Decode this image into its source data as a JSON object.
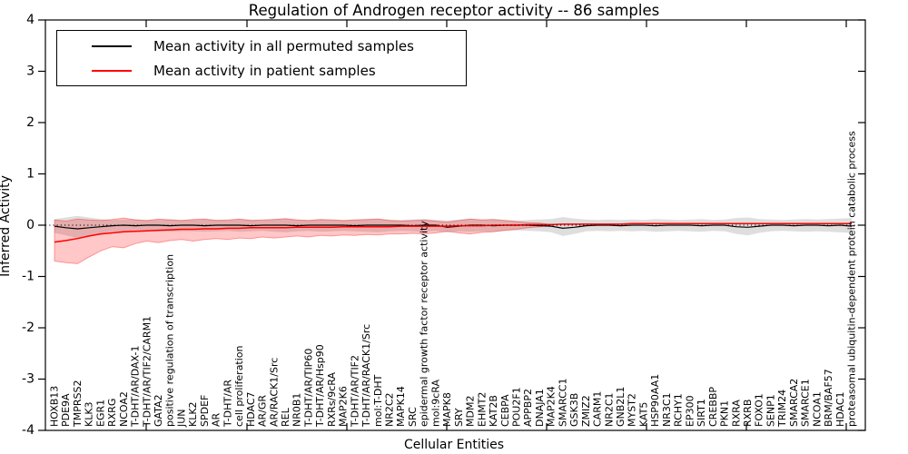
{
  "title": "Regulation of Androgen receptor activity -- 86 samples",
  "axes": {
    "xlabel": "Cellular Entities",
    "ylabel": "Inferred Activity",
    "yticks": [
      "4",
      "3",
      "2",
      "1",
      "0",
      "-1",
      "-2",
      "-3",
      "-4"
    ],
    "ylim": [
      -4,
      4
    ],
    "grid": false
  },
  "legend": {
    "position": "upper-left",
    "entries": [
      {
        "label": "Mean activity in all permuted samples",
        "color": "#000000"
      },
      {
        "label": "Mean activity in patient samples",
        "color": "#ff0000"
      }
    ]
  },
  "colors": {
    "permuted_line": "#000000",
    "patient_line": "#ff0000",
    "permuted_band": "rgba(0,0,0,0.13)",
    "patient_band": "rgba(255,0,0,0.22)",
    "patient_band_edge": "rgba(255,0,0,0.35)"
  },
  "chart_data": {
    "type": "line",
    "title": "Regulation of Androgen receptor activity -- 86 samples",
    "xlabel": "Cellular Entities",
    "ylabel": "Inferred Activity",
    "ylim": [
      -4,
      4
    ],
    "zero_reference_line": true,
    "categories": [
      "HOXB13",
      "PDE9A",
      "TMPRSS2",
      "KLK3",
      "EGR1",
      "RXRG",
      "NCOA2",
      "T-DHT/AR/DAX-1",
      "T-DHT/AR/TIF2/CARM1",
      "GATA2",
      "positive regulation of transcription",
      "JUN",
      "KLK2",
      "SPDEF",
      "AR",
      "T-DHT/AR",
      "cell proliferation",
      "HDAC7",
      "AR/GR",
      "AR/RACK1/Src",
      "REL",
      "NR0B1",
      "T-DHT/AR/TIP60",
      "T-DHT/AR/Hsp90",
      "RXRs/9cRA",
      "MAP2K6",
      "T-DHT/AR/TIF2",
      "T-DHT/AR/RACK1/Src",
      "mol:T-DHT",
      "NR2C2",
      "MAPK14",
      "SRC",
      "epidermal growth factor receptor activity",
      "mol:9cRA",
      "MAPK8",
      "SRY",
      "MDM2",
      "EHMT2",
      "KAT2B",
      "CEBPA",
      "POU2F1",
      "APPBP2",
      "DNAJA1",
      "MAP2K4",
      "SMARCC1",
      "GSK3B",
      "ZMIZ2",
      "CARM1",
      "NR2C1",
      "GNB2L1",
      "MYST2",
      "KAT5",
      "HSP90AA1",
      "NR3C1",
      "RCHY1",
      "EP300",
      "SIRT1",
      "CREBBP",
      "PKN1",
      "RXRA",
      "RXRB",
      "FOXO1",
      "SENP1",
      "TRIM24",
      "SMARCA2",
      "SMARCE1",
      "NCOA1",
      "BRM/BAF57",
      "HDAC1",
      "proteasomal ubiquitin-dependent protein catabolic process"
    ],
    "series": [
      {
        "name": "Mean activity in all permuted samples",
        "color": "#000000",
        "values": [
          -0.02,
          -0.05,
          -0.07,
          -0.05,
          -0.03,
          -0.01,
          0.0,
          -0.01,
          0.0,
          0.0,
          -0.01,
          0.0,
          0.0,
          -0.01,
          0.0,
          0.0,
          0.0,
          -0.01,
          0.0,
          0.0,
          0.0,
          -0.01,
          0.0,
          0.0,
          0.0,
          0.0,
          -0.01,
          0.0,
          0.0,
          0.0,
          0.0,
          -0.01,
          0.0,
          0.0,
          -0.04,
          -0.02,
          0.0,
          0.0,
          -0.01,
          0.0,
          0.0,
          0.0,
          -0.01,
          -0.02,
          -0.06,
          -0.04,
          -0.01,
          0.0,
          0.0,
          -0.01,
          0.0,
          0.0,
          -0.01,
          0.0,
          0.0,
          0.0,
          -0.01,
          0.0,
          0.0,
          -0.03,
          -0.04,
          -0.02,
          0.0,
          0.0,
          -0.01,
          0.0,
          0.0,
          -0.01,
          0.0,
          -0.02
        ]
      },
      {
        "name": "Mean activity in patient samples",
        "color": "#ff0000",
        "values": [
          -0.33,
          -0.3,
          -0.26,
          -0.21,
          -0.17,
          -0.15,
          -0.13,
          -0.12,
          -0.11,
          -0.1,
          -0.09,
          -0.08,
          -0.08,
          -0.07,
          -0.07,
          -0.06,
          -0.06,
          -0.05,
          -0.05,
          -0.05,
          -0.05,
          -0.04,
          -0.04,
          -0.04,
          -0.04,
          -0.03,
          -0.03,
          -0.03,
          -0.03,
          -0.03,
          -0.02,
          -0.02,
          -0.02,
          -0.02,
          -0.02,
          -0.01,
          -0.01,
          -0.01,
          0.0,
          0.0,
          0.0,
          0.01,
          0.01,
          0.01,
          0.02,
          0.02,
          0.02,
          0.02,
          0.02,
          0.02,
          0.03,
          0.03,
          0.03,
          0.03,
          0.03,
          0.03,
          0.03,
          0.03,
          0.03,
          0.03,
          0.03,
          0.03,
          0.03,
          0.03,
          0.03,
          0.03,
          0.03,
          0.03,
          0.03,
          0.03
        ]
      }
    ],
    "bands": [
      {
        "name": "permuted-range",
        "fill": "rgba(0,0,0,0.13)",
        "edge": "none",
        "upper": [
          0.12,
          0.15,
          0.18,
          0.15,
          0.12,
          0.1,
          0.11,
          0.12,
          0.1,
          0.11,
          0.12,
          0.1,
          0.11,
          0.12,
          0.11,
          0.1,
          0.12,
          0.11,
          0.1,
          0.12,
          0.13,
          0.11,
          0.1,
          0.12,
          0.11,
          0.1,
          0.11,
          0.12,
          0.13,
          0.11,
          0.1,
          0.11,
          0.12,
          0.1,
          0.09,
          0.11,
          0.13,
          0.11,
          0.12,
          0.1,
          0.09,
          0.1,
          0.11,
          0.12,
          0.16,
          0.13,
          0.11,
          0.1,
          0.11,
          0.1,
          0.11,
          0.1,
          0.12,
          0.11,
          0.1,
          0.11,
          0.12,
          0.1,
          0.11,
          0.14,
          0.15,
          0.12,
          0.11,
          0.1,
          0.11,
          0.12,
          0.11,
          0.12,
          0.13,
          0.14
        ],
        "lower": [
          -0.15,
          -0.2,
          -0.25,
          -0.2,
          -0.16,
          -0.13,
          -0.12,
          -0.13,
          -0.12,
          -0.12,
          -0.13,
          -0.12,
          -0.12,
          -0.13,
          -0.12,
          -0.11,
          -0.13,
          -0.12,
          -0.11,
          -0.13,
          -0.14,
          -0.12,
          -0.11,
          -0.13,
          -0.12,
          -0.11,
          -0.12,
          -0.13,
          -0.14,
          -0.12,
          -0.11,
          -0.12,
          -0.13,
          -0.11,
          -0.14,
          -0.12,
          -0.13,
          -0.12,
          -0.13,
          -0.11,
          -0.1,
          -0.11,
          -0.12,
          -0.14,
          -0.21,
          -0.17,
          -0.12,
          -0.11,
          -0.12,
          -0.11,
          -0.12,
          -0.11,
          -0.13,
          -0.12,
          -0.11,
          -0.12,
          -0.13,
          -0.11,
          -0.12,
          -0.17,
          -0.2,
          -0.15,
          -0.12,
          -0.11,
          -0.12,
          -0.13,
          -0.12,
          -0.13,
          -0.14,
          -0.15
        ]
      },
      {
        "name": "patient-range",
        "fill": "rgba(255,0,0,0.22)",
        "edge": "rgba(255,0,0,0.35)",
        "upper": [
          0.1,
          0.08,
          0.12,
          0.1,
          0.09,
          0.11,
          0.14,
          0.1,
          0.09,
          0.12,
          0.1,
          0.09,
          0.11,
          0.12,
          0.09,
          0.1,
          0.12,
          0.09,
          0.1,
          0.11,
          0.13,
          0.1,
          0.09,
          0.11,
          0.1,
          0.09,
          0.1,
          0.11,
          0.12,
          0.09,
          0.08,
          0.09,
          0.1,
          0.08,
          0.06,
          0.09,
          0.12,
          0.1,
          0.11,
          0.09,
          0.07,
          0.05,
          0.04,
          0.01,
          0.02,
          0.02,
          0.02,
          0.02,
          0.02,
          0.02,
          0.03,
          0.03,
          0.03,
          0.03,
          0.03,
          0.03,
          0.03,
          0.03,
          0.03,
          0.03,
          0.03,
          0.03,
          0.03,
          0.03,
          0.03,
          0.03,
          0.03,
          0.03,
          0.03,
          0.03
        ],
        "lower": [
          -0.7,
          -0.73,
          -0.75,
          -0.62,
          -0.5,
          -0.42,
          -0.44,
          -0.36,
          -0.31,
          -0.34,
          -0.3,
          -0.28,
          -0.31,
          -0.28,
          -0.26,
          -0.28,
          -0.25,
          -0.26,
          -0.23,
          -0.25,
          -0.23,
          -0.21,
          -0.23,
          -0.2,
          -0.21,
          -0.19,
          -0.2,
          -0.18,
          -0.19,
          -0.17,
          -0.17,
          -0.16,
          -0.17,
          -0.15,
          -0.12,
          -0.15,
          -0.17,
          -0.14,
          -0.13,
          -0.1,
          -0.08,
          -0.05,
          -0.03,
          0.01,
          0.02,
          0.02,
          0.02,
          0.02,
          0.02,
          0.02,
          0.03,
          0.03,
          0.03,
          0.03,
          0.03,
          0.03,
          0.03,
          0.03,
          0.03,
          0.03,
          0.03,
          0.03,
          0.03,
          0.03,
          0.03,
          0.03,
          0.03,
          0.03,
          0.03,
          0.03
        ]
      }
    ]
  }
}
